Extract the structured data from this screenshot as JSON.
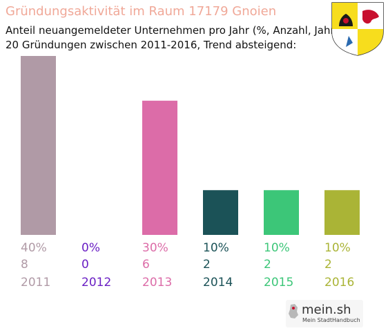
{
  "title": "Gründungsaktivität im Raum 17179 Gnoien",
  "subtitle_line1": "Anteil neuangemeldeter Unternehmen pro Jahr (%, Anzahl, Jahr)",
  "subtitle_line2": "20 Gründungen zwischen 2011-2016, Trend absteigend:",
  "logo": {
    "name": "mein.sh",
    "tagline": "Mein StadtHandbuch"
  },
  "chart_data": {
    "type": "bar",
    "categories": [
      "2011",
      "2012",
      "2013",
      "2014",
      "2015",
      "2016"
    ],
    "values": [
      40,
      0,
      30,
      10,
      10,
      10
    ],
    "percent_labels": [
      "40%",
      "0%",
      "30%",
      "10%",
      "10%",
      "10%"
    ],
    "counts": [
      "8",
      "0",
      "6",
      "2",
      "2",
      "2"
    ],
    "colors": [
      "#b09aa6",
      "#6a1fc4",
      "#dc6ca8",
      "#1b5257",
      "#3cc678",
      "#aab436"
    ],
    "ylim": [
      0,
      40
    ],
    "grid": false,
    "legend": "none"
  }
}
